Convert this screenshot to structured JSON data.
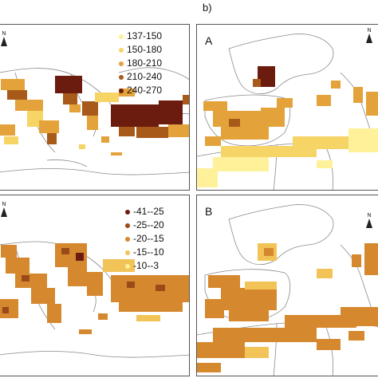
{
  "figure_label": "b)",
  "panels": {
    "top_left": {
      "letter": "",
      "north_glyph": "N",
      "legend": [
        {
          "label": "137-150",
          "color": "#fff19a"
        },
        {
          "label": "150-180",
          "color": "#f6d466"
        },
        {
          "label": "180-210",
          "color": "#e3a33a"
        },
        {
          "label": "210-240",
          "color": "#a85a1a"
        },
        {
          "label": "240-270",
          "color": "#6b1c0e"
        }
      ]
    },
    "bottom_left": {
      "letter": "",
      "north_glyph": "N",
      "legend": [
        {
          "label": "-41--25",
          "color": "#6b1c0e"
        },
        {
          "label": "-25--20",
          "color": "#9a4a18"
        },
        {
          "label": "-20--15",
          "color": "#d6882f"
        },
        {
          "label": "-15--10",
          "color": "#f2c457"
        },
        {
          "label": "-10--3",
          "color": "#fff19a"
        }
      ]
    },
    "top_right": {
      "letter": "A",
      "north_glyph": "N"
    },
    "bottom_right": {
      "letter": "B",
      "north_glyph": "N"
    }
  },
  "colors": {
    "border_line": "#8a8a8a",
    "panel_frame": "#555555",
    "class_light": "#fff19a",
    "class_mid": "#e3a33a",
    "class_dark": "#6b1c0e"
  }
}
